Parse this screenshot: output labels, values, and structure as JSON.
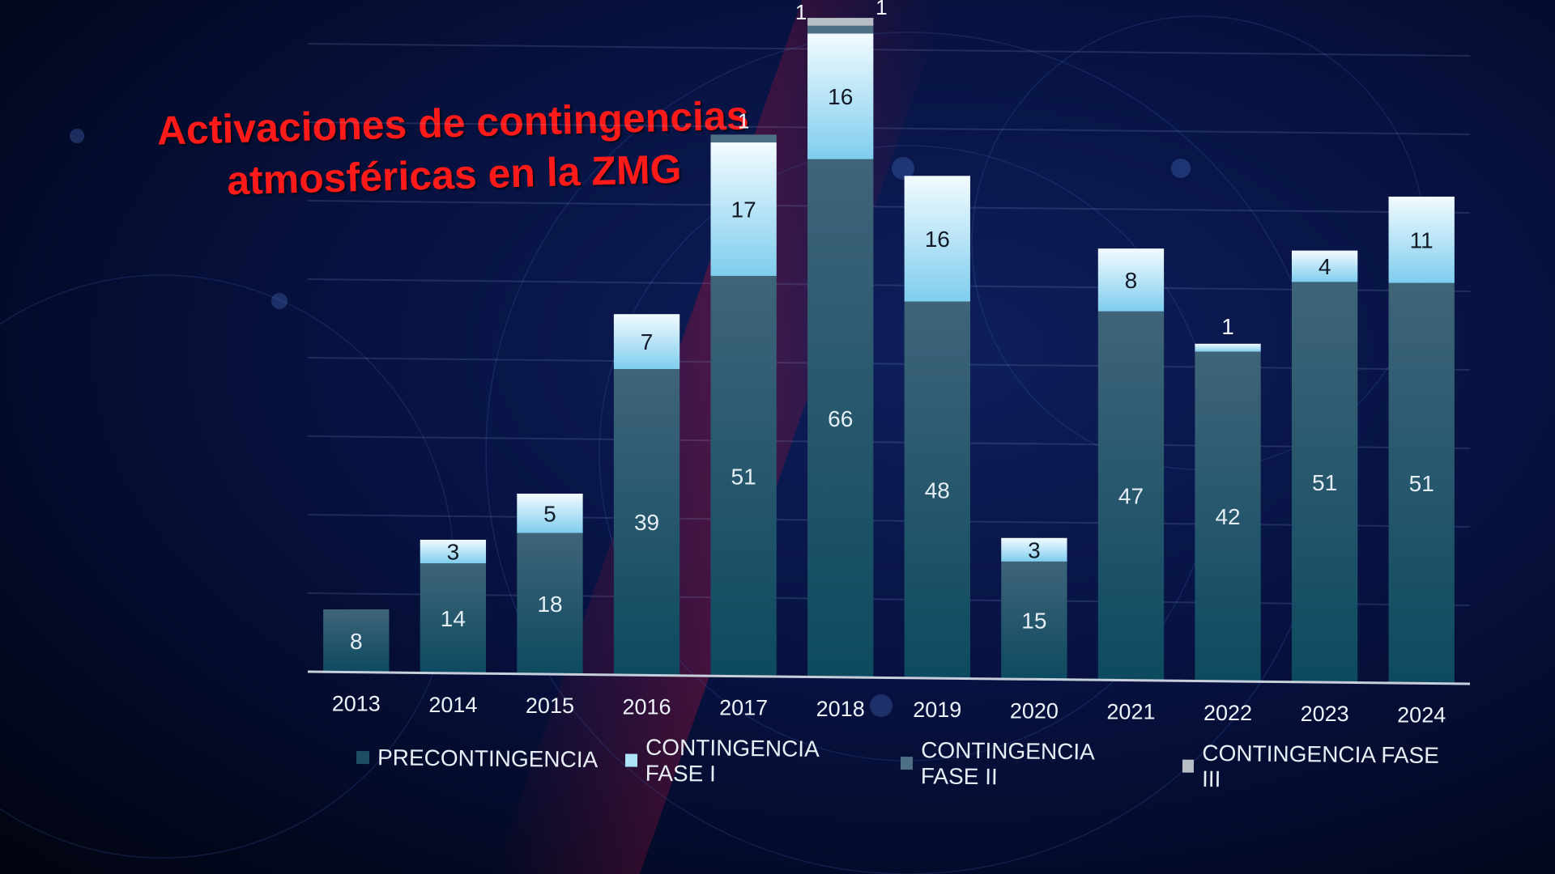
{
  "title_line1": "Activaciones de contingencias",
  "title_line2": "atmosféricas en la ZMG",
  "chart_data": {
    "type": "bar",
    "stacked": true,
    "categories": [
      "2013",
      "2014",
      "2015",
      "2016",
      "2017",
      "2018",
      "2019",
      "2020",
      "2021",
      "2022",
      "2023",
      "2024"
    ],
    "series": [
      {
        "name": "PRECONTINGENCIA",
        "color": "#1c4f66",
        "values": [
          8,
          14,
          18,
          39,
          51,
          66,
          48,
          15,
          47,
          42,
          51,
          51
        ]
      },
      {
        "name": "CONTINGENCIA FASE I",
        "color": "#aee3f7",
        "values": [
          0,
          3,
          5,
          7,
          17,
          16,
          16,
          3,
          8,
          1,
          4,
          11
        ]
      },
      {
        "name": "CONTINGENCIA FASE II",
        "color": "#4f6f84",
        "values": [
          0,
          0,
          0,
          0,
          1,
          1,
          0,
          0,
          0,
          0,
          0,
          0
        ]
      },
      {
        "name": "CONTINGENCIA FASE III",
        "color": "#b8bec6",
        "values": [
          0,
          0,
          0,
          0,
          0,
          1,
          0,
          0,
          0,
          0,
          0,
          0
        ]
      }
    ],
    "ylim": [
      0,
      85
    ],
    "grid": true,
    "legend_position": "bottom"
  }
}
